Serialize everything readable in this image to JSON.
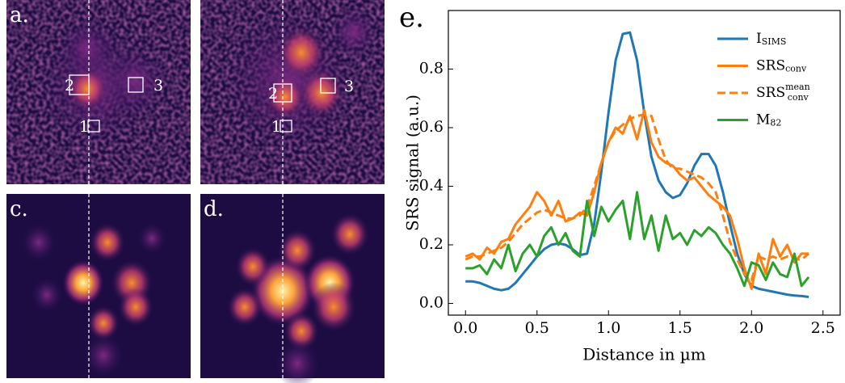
{
  "panels": [
    {
      "label": "a.",
      "boxes": [
        "2",
        "3",
        "1"
      ]
    },
    {
      "boxes": [
        "2",
        "3",
        "1"
      ]
    },
    {
      "label": "c."
    },
    {
      "label": "d."
    }
  ],
  "chart_data": {
    "type": "line",
    "label": "e.",
    "xlabel": "Distance in µm",
    "ylabel": "SRS signal (a.u.)",
    "x": [
      0,
      0.05,
      0.1,
      0.15,
      0.2,
      0.25,
      0.3,
      0.35,
      0.4,
      0.45,
      0.5,
      0.55,
      0.6,
      0.65,
      0.7,
      0.75,
      0.8,
      0.85,
      0.9,
      0.95,
      1.0,
      1.05,
      1.1,
      1.15,
      1.2,
      1.25,
      1.3,
      1.35,
      1.4,
      1.45,
      1.5,
      1.55,
      1.6,
      1.65,
      1.7,
      1.75,
      1.8,
      1.85,
      1.9,
      1.95,
      2.0,
      2.05,
      2.1,
      2.15,
      2.2,
      2.25,
      2.3,
      2.35,
      2.4
    ],
    "xlim": [
      -0.12,
      2.62
    ],
    "ylim": [
      -0.04,
      1.0
    ],
    "xticks": [
      {
        "value": 0,
        "label": "0.0"
      },
      0.5,
      {
        "value": 1,
        "label": "1.0"
      },
      1.5,
      {
        "value": 2,
        "label": "2.0"
      },
      2.5
    ],
    "yticks": [
      {
        "value": 0,
        "label": "0.0"
      },
      0.2,
      0.4,
      0.6,
      0.8
    ],
    "series": [
      {
        "name": "I",
        "sub": "SIMS",
        "color": "#1f77b4",
        "dash": false,
        "values": [
          0.075,
          0.075,
          0.07,
          0.06,
          0.05,
          0.045,
          0.05,
          0.07,
          0.1,
          0.13,
          0.16,
          0.185,
          0.2,
          0.205,
          0.2,
          0.185,
          0.165,
          0.17,
          0.27,
          0.45,
          0.65,
          0.83,
          0.92,
          0.925,
          0.83,
          0.65,
          0.5,
          0.42,
          0.38,
          0.36,
          0.37,
          0.41,
          0.47,
          0.51,
          0.51,
          0.47,
          0.38,
          0.27,
          0.17,
          0.1,
          0.06,
          0.05,
          0.045,
          0.04,
          0.035,
          0.03,
          0.027,
          0.025,
          0.022
        ]
      },
      {
        "name": "SRS",
        "sub": "conv",
        "color": "#ff7f0e",
        "dash": false,
        "values": [
          0.16,
          0.17,
          0.15,
          0.19,
          0.17,
          0.21,
          0.22,
          0.27,
          0.3,
          0.33,
          0.38,
          0.35,
          0.3,
          0.35,
          0.28,
          0.29,
          0.31,
          0.3,
          0.38,
          0.48,
          0.55,
          0.6,
          0.58,
          0.64,
          0.56,
          0.66,
          0.55,
          0.5,
          0.48,
          0.47,
          0.44,
          0.42,
          0.43,
          0.4,
          0.37,
          0.35,
          0.33,
          0.3,
          0.22,
          0.12,
          0.05,
          0.17,
          0.1,
          0.22,
          0.16,
          0.2,
          0.14,
          0.17,
          0.17
        ]
      },
      {
        "name": "SRS",
        "sub": "conv",
        "sup": "mean",
        "color": "#ff7f0e",
        "dash": true,
        "values": [
          0.15,
          0.16,
          0.16,
          0.17,
          0.18,
          0.19,
          0.21,
          0.24,
          0.27,
          0.29,
          0.31,
          0.32,
          0.31,
          0.3,
          0.29,
          0.29,
          0.3,
          0.33,
          0.4,
          0.48,
          0.55,
          0.59,
          0.61,
          0.63,
          0.64,
          0.645,
          0.64,
          0.56,
          0.49,
          0.46,
          0.46,
          0.45,
          0.44,
          0.43,
          0.41,
          0.38,
          0.3,
          0.21,
          0.15,
          0.1,
          0.08,
          0.16,
          0.15,
          0.16,
          0.15,
          0.16,
          0.15,
          0.15,
          0.17
        ]
      },
      {
        "name": "M",
        "sub": "82",
        "color": "#2ca02c",
        "dash": false,
        "values": [
          0.12,
          0.12,
          0.13,
          0.1,
          0.15,
          0.12,
          0.2,
          0.11,
          0.17,
          0.2,
          0.16,
          0.23,
          0.26,
          0.2,
          0.24,
          0.18,
          0.16,
          0.35,
          0.23,
          0.33,
          0.28,
          0.32,
          0.35,
          0.22,
          0.38,
          0.22,
          0.3,
          0.18,
          0.3,
          0.22,
          0.24,
          0.2,
          0.25,
          0.23,
          0.26,
          0.24,
          0.2,
          0.17,
          0.12,
          0.06,
          0.14,
          0.13,
          0.08,
          0.14,
          0.1,
          0.09,
          0.17,
          0.06,
          0.09
        ]
      }
    ]
  }
}
